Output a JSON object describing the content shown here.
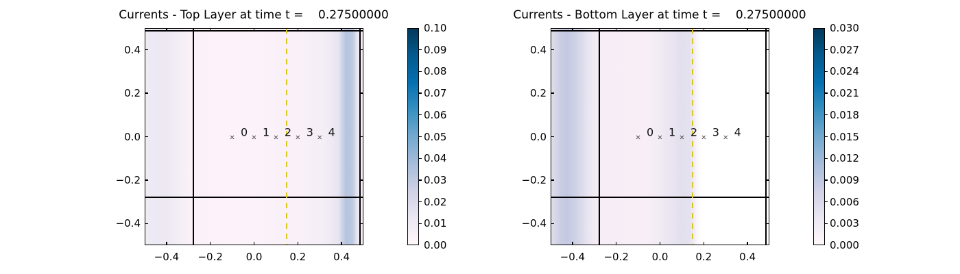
{
  "figure": {
    "background": "#ffffff",
    "axis_color": "#000000",
    "domain_line_color": "#000000",
    "dashed_line_color": "#d6c81e"
  },
  "colormap_stops": [
    {
      "p": 0.0,
      "c": "#fff7fb"
    },
    {
      "p": 0.125,
      "c": "#ece7f2"
    },
    {
      "p": 0.25,
      "c": "#d0d1e6"
    },
    {
      "p": 0.375,
      "c": "#a6bddb"
    },
    {
      "p": 0.5,
      "c": "#74a9cf"
    },
    {
      "p": 0.625,
      "c": "#3690c0"
    },
    {
      "p": 0.75,
      "c": "#0570b0"
    },
    {
      "p": 0.875,
      "c": "#045a8d"
    },
    {
      "p": 1.0,
      "c": "#023858"
    }
  ],
  "chart_data": [
    {
      "type": "heatmap",
      "title": "Currents - Top Layer at time t =    0.27500000",
      "time": "0.27500000",
      "xlim": [
        -0.5,
        0.5
      ],
      "ylim": [
        -0.5,
        0.5
      ],
      "xticks": [
        {
          "v": -0.4,
          "label": "−0.4"
        },
        {
          "v": -0.2,
          "label": "−0.2"
        },
        {
          "v": 0.0,
          "label": "0.0"
        },
        {
          "v": 0.2,
          "label": "0.2"
        },
        {
          "v": 0.4,
          "label": "0.4"
        }
      ],
      "yticks": [
        {
          "v": 0.4,
          "label": "0.4"
        },
        {
          "v": 0.2,
          "label": "0.2"
        },
        {
          "v": 0.0,
          "label": "0.0"
        },
        {
          "v": -0.2,
          "label": "−0.2"
        },
        {
          "v": -0.4,
          "label": "−0.4"
        }
      ],
      "colorbar": {
        "vmin": 0.0,
        "vmax": 0.1,
        "ticks": [
          {
            "v": 0.0,
            "label": "0.00"
          },
          {
            "v": 0.01,
            "label": "0.01"
          },
          {
            "v": 0.02,
            "label": "0.02"
          },
          {
            "v": 0.03,
            "label": "0.03"
          },
          {
            "v": 0.04,
            "label": "0.04"
          },
          {
            "v": 0.05,
            "label": "0.05"
          },
          {
            "v": 0.06,
            "label": "0.06"
          },
          {
            "v": 0.07,
            "label": "0.07"
          },
          {
            "v": 0.08,
            "label": "0.08"
          },
          {
            "v": 0.09,
            "label": "0.09"
          },
          {
            "v": 0.1,
            "label": "0.10"
          }
        ]
      },
      "field_stops": [
        {
          "p": 0.0,
          "c": "#f0ecf4"
        },
        {
          "p": 0.05,
          "c": "#ebe9f3"
        },
        {
          "p": 0.1,
          "c": "#ece9f3"
        },
        {
          "p": 0.16,
          "c": "#f4eef6"
        },
        {
          "p": 0.21,
          "c": "#fbf1f8"
        },
        {
          "p": 0.5,
          "c": "#fcf2f9"
        },
        {
          "p": 0.72,
          "c": "#f9f0f8"
        },
        {
          "p": 0.83,
          "c": "#f2edf5"
        },
        {
          "p": 0.885,
          "c": "#e8e4f0"
        },
        {
          "p": 0.905,
          "c": "#cdd2e5"
        },
        {
          "p": 0.92,
          "c": "#b6c4de"
        },
        {
          "p": 0.945,
          "c": "#b9c7e0"
        },
        {
          "p": 0.956,
          "c": "#c8cfe4"
        },
        {
          "p": 0.966,
          "c": "#dfdfec"
        },
        {
          "p": 0.976,
          "c": "#efeaf3"
        },
        {
          "p": 1.0,
          "c": "#f5eef6"
        }
      ],
      "overlay_lines": [
        {
          "orient": "v",
          "pos": -0.277,
          "style": "solid"
        },
        {
          "orient": "v",
          "pos": 0.484,
          "style": "solid"
        },
        {
          "orient": "h",
          "pos": -0.28,
          "style": "solid"
        },
        {
          "orient": "h",
          "pos": 0.488,
          "style": "solid"
        },
        {
          "orient": "v",
          "pos": 0.15,
          "style": "dashed"
        }
      ],
      "stations": {
        "marker": "×",
        "y": -0.005,
        "x": [
          -0.1,
          0.0,
          0.1,
          0.2,
          0.3
        ],
        "labels": [
          "0",
          "1",
          "2",
          "3",
          "4"
        ],
        "label_dx": 0.055,
        "label_y": 0.02
      }
    },
    {
      "type": "heatmap",
      "title": "Currents - Bottom Layer at time t =    0.27500000",
      "time": "0.27500000",
      "xlim": [
        -0.5,
        0.5
      ],
      "ylim": [
        -0.5,
        0.5
      ],
      "xticks": [
        {
          "v": -0.4,
          "label": "−0.4"
        },
        {
          "v": -0.2,
          "label": "−0.2"
        },
        {
          "v": 0.0,
          "label": "0.0"
        },
        {
          "v": 0.2,
          "label": "0.2"
        },
        {
          "v": 0.4,
          "label": "0.4"
        }
      ],
      "yticks": [
        {
          "v": 0.4,
          "label": "0.4"
        },
        {
          "v": 0.2,
          "label": "0.2"
        },
        {
          "v": 0.0,
          "label": "0.0"
        },
        {
          "v": -0.2,
          "label": "−0.2"
        },
        {
          "v": -0.4,
          "label": "−0.4"
        }
      ],
      "colorbar": {
        "vmin": 0.0,
        "vmax": 0.03,
        "ticks": [
          {
            "v": 0.0,
            "label": "0.000"
          },
          {
            "v": 0.003,
            "label": "0.003"
          },
          {
            "v": 0.006,
            "label": "0.006"
          },
          {
            "v": 0.009,
            "label": "0.009"
          },
          {
            "v": 0.012,
            "label": "0.012"
          },
          {
            "v": 0.015,
            "label": "0.015"
          },
          {
            "v": 0.018,
            "label": "0.018"
          },
          {
            "v": 0.021,
            "label": "0.021"
          },
          {
            "v": 0.024,
            "label": "0.024"
          },
          {
            "v": 0.027,
            "label": "0.027"
          },
          {
            "v": 0.03,
            "label": "0.030"
          }
        ]
      },
      "field_stops": [
        {
          "p": 0.0,
          "c": "#e2dfed"
        },
        {
          "p": 0.02,
          "c": "#d8d7e8"
        },
        {
          "p": 0.05,
          "c": "#c8cde3"
        },
        {
          "p": 0.075,
          "c": "#c3c9e1"
        },
        {
          "p": 0.11,
          "c": "#cdd1e5"
        },
        {
          "p": 0.14,
          "c": "#dbdaea"
        },
        {
          "p": 0.17,
          "c": "#e9e5f1"
        },
        {
          "p": 0.2,
          "c": "#f2ebf5"
        },
        {
          "p": 0.23,
          "c": "#f7edf6"
        },
        {
          "p": 0.45,
          "c": "#f7eef7"
        },
        {
          "p": 0.5,
          "c": "#f0ebf4"
        },
        {
          "p": 0.55,
          "c": "#e9e5f1"
        },
        {
          "p": 0.6,
          "c": "#e3e0ee"
        },
        {
          "p": 0.635,
          "c": "#e5e2ef"
        },
        {
          "p": 0.655,
          "c": "#f0ebf4"
        },
        {
          "p": 0.67,
          "c": "#fbf7fb"
        },
        {
          "p": 0.69,
          "c": "#ffffff"
        },
        {
          "p": 1.0,
          "c": "#ffffff"
        }
      ],
      "overlay_lines": [
        {
          "orient": "v",
          "pos": -0.277,
          "style": "solid"
        },
        {
          "orient": "v",
          "pos": 0.484,
          "style": "solid"
        },
        {
          "orient": "h",
          "pos": -0.28,
          "style": "solid"
        },
        {
          "orient": "h",
          "pos": 0.488,
          "style": "solid"
        },
        {
          "orient": "v",
          "pos": 0.15,
          "style": "dashed"
        }
      ],
      "stations": {
        "marker": "×",
        "y": -0.005,
        "x": [
          -0.1,
          0.0,
          0.1,
          0.2,
          0.3
        ],
        "labels": [
          "0",
          "1",
          "2",
          "3",
          "4"
        ],
        "label_dx": 0.055,
        "label_y": 0.02
      }
    }
  ]
}
